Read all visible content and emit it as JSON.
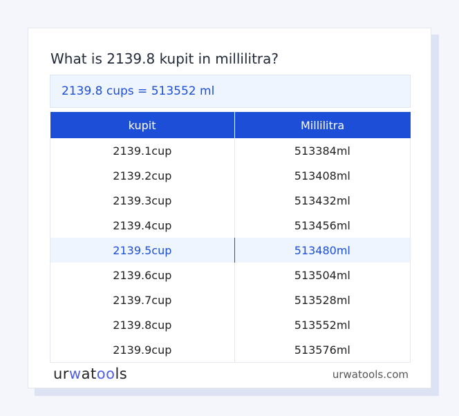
{
  "title": "What is 2139.8 kupit in millilitra?",
  "result": "2139.8 cups = 513552 ml",
  "table": {
    "headers": [
      "kupit",
      "Millilitra"
    ],
    "rows": [
      [
        "2139.1cup",
        "513384ml"
      ],
      [
        "2139.2cup",
        "513408ml"
      ],
      [
        "2139.3cup",
        "513432ml"
      ],
      [
        "2139.4cup",
        "513456ml"
      ],
      [
        "2139.5cup",
        "513480ml"
      ],
      [
        "2139.6cup",
        "513504ml"
      ],
      [
        "2139.7cup",
        "513528ml"
      ],
      [
        "2139.8cup",
        "513552ml"
      ],
      [
        "2139.9cup",
        "513576ml"
      ]
    ],
    "highlighted_row": 4
  },
  "footer": {
    "logo": "urwatools",
    "site": "urwatools.com"
  },
  "colors": {
    "accent": "#1d4ed8",
    "highlight": "#eef5ff"
  }
}
